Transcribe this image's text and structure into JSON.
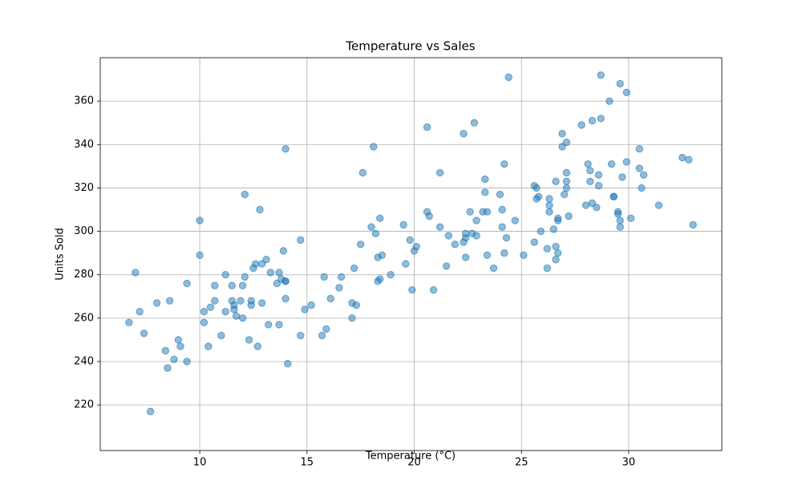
{
  "chart_data": {
    "type": "scatter",
    "title": "Temperature vs Sales",
    "x_label": "Temperature (°C)",
    "y_label": "Units Sold",
    "x": [
      6.7,
      7.0,
      7.2,
      7.4,
      7.7,
      8.0,
      8.4,
      8.5,
      8.6,
      8.8,
      9.0,
      9.1,
      9.4,
      9.4,
      10.0,
      10.0,
      10.2,
      10.2,
      10.4,
      10.5,
      10.7,
      10.7,
      11.0,
      11.2,
      11.2,
      11.5,
      11.5,
      11.6,
      11.6,
      11.7,
      11.9,
      12.0,
      12.0,
      12.1,
      12.1,
      12.3,
      12.4,
      12.4,
      12.5,
      12.6,
      12.7,
      12.8,
      12.9,
      12.9,
      13.1,
      13.2,
      13.3,
      13.6,
      13.7,
      13.7,
      13.8,
      13.9,
      14.0,
      14.0,
      14.0,
      14.0,
      14.1,
      14.7,
      14.7,
      14.9,
      15.2,
      15.7,
      15.8,
      15.9,
      16.1,
      16.5,
      16.6,
      17.1,
      17.1,
      17.2,
      17.3,
      17.5,
      17.6,
      18.0,
      18.1,
      18.2,
      18.3,
      18.3,
      18.4,
      18.4,
      18.5,
      18.9,
      19.5,
      19.6,
      19.8,
      19.9,
      20.0,
      20.1,
      20.6,
      20.6,
      20.7,
      20.9,
      21.2,
      21.2,
      21.5,
      21.6,
      21.9,
      22.3,
      22.3,
      22.4,
      22.4,
      22.4,
      22.6,
      22.7,
      22.8,
      22.9,
      22.9,
      23.2,
      23.3,
      23.3,
      23.4,
      23.4,
      23.7,
      24.0,
      24.1,
      24.1,
      24.2,
      24.2,
      24.3,
      24.4,
      24.7,
      25.1,
      25.6,
      25.6,
      25.7,
      25.7,
      25.8,
      25.9,
      26.2,
      26.2,
      26.3,
      26.3,
      26.3,
      26.5,
      26.6,
      26.6,
      26.6,
      26.7,
      26.7,
      26.7,
      26.9,
      26.9,
      27.0,
      27.1,
      27.1,
      27.1,
      27.1,
      27.2,
      27.8,
      28.0,
      28.1,
      28.2,
      28.2,
      28.3,
      28.3,
      28.5,
      28.6,
      28.6,
      28.7,
      28.7,
      29.1,
      29.2,
      29.3,
      29.3,
      29.5,
      29.5,
      29.6,
      29.6,
      29.6,
      29.7,
      29.9,
      29.9,
      30.1,
      30.5,
      30.5,
      30.6,
      30.7,
      31.4,
      32.5,
      32.8,
      33.0
    ],
    "values": [
      258,
      281,
      263,
      253,
      217,
      267,
      245,
      237,
      268,
      241,
      250,
      247,
      240,
      276,
      305,
      289,
      263,
      258,
      247,
      265,
      268,
      275,
      252,
      280,
      263,
      275,
      268,
      266,
      264,
      261,
      268,
      275,
      260,
      279,
      317,
      250,
      268,
      266,
      283,
      285,
      247,
      310,
      285,
      267,
      287,
      257,
      281,
      276,
      257,
      281,
      278,
      291,
      277,
      277,
      269,
      338,
      239,
      296,
      252,
      264,
      266,
      252,
      279,
      255,
      269,
      274,
      279,
      260,
      267,
      283,
      266,
      294,
      327,
      302,
      339,
      299,
      288,
      277,
      278,
      306,
      289,
      280,
      303,
      285,
      296,
      273,
      291,
      293,
      348,
      309,
      307,
      273,
      302,
      327,
      284,
      298,
      294,
      295,
      345,
      288,
      297,
      299,
      309,
      299,
      350,
      305,
      298,
      309,
      318,
      324,
      289,
      309,
      283,
      317,
      310,
      302,
      290,
      331,
      297,
      371,
      305,
      289,
      295,
      321,
      315,
      320,
      316,
      300,
      283,
      292,
      312,
      315,
      309,
      301,
      287,
      293,
      323,
      306,
      305,
      290,
      339,
      345,
      317,
      320,
      323,
      327,
      341,
      307,
      349,
      312,
      331,
      328,
      323,
      351,
      313,
      311,
      326,
      321,
      352,
      372,
      360,
      331,
      316,
      316,
      309,
      308,
      305,
      302,
      368,
      325,
      364,
      332,
      306,
      338,
      329,
      320,
      326,
      312,
      334,
      333,
      303
    ],
    "color": "#1f77b4",
    "xlim": [
      5.36,
      34.34
    ],
    "ylim": [
      199,
      380
    ],
    "xticks": [
      10,
      15,
      20,
      25,
      30
    ],
    "yticks": [
      220,
      240,
      260,
      280,
      300,
      320,
      340,
      360
    ],
    "grid": true
  }
}
